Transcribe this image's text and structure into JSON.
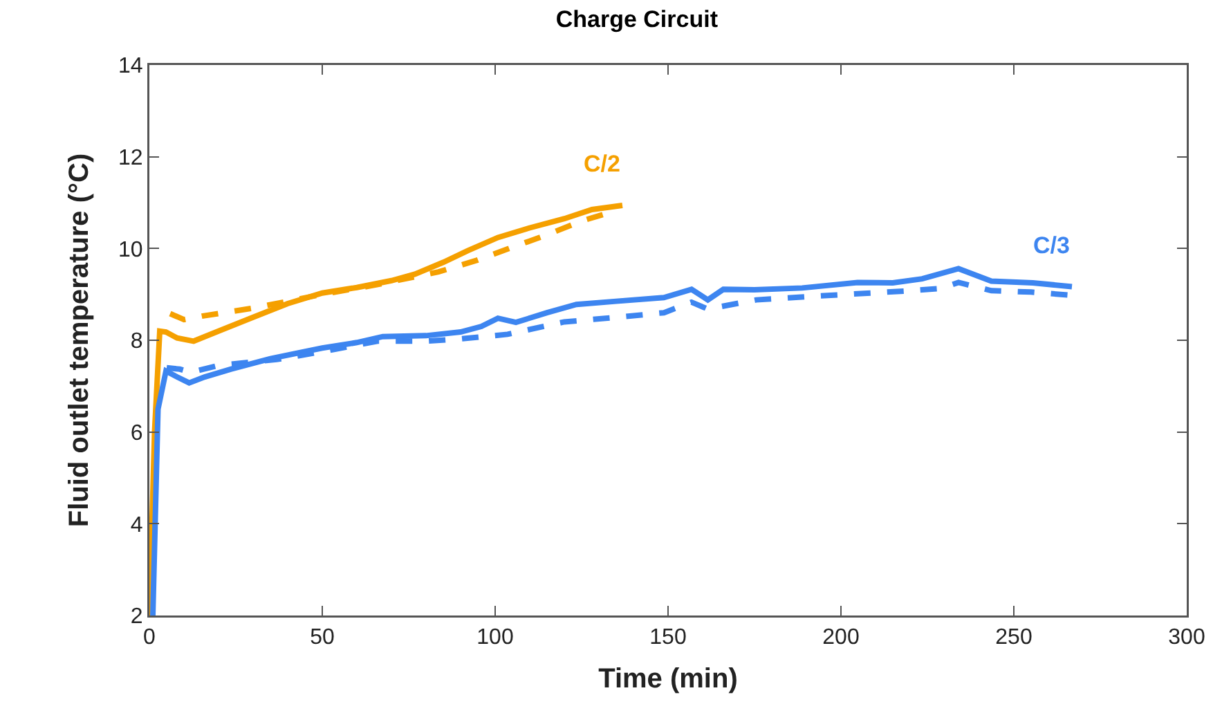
{
  "chart_data": {
    "type": "line",
    "title": "Charge Circuit",
    "xlabel": "Time (min)",
    "ylabel": "Fluid outlet temperature (°C)",
    "xlim": [
      0,
      300
    ],
    "xticks": [
      0,
      50,
      100,
      150,
      200,
      250,
      300
    ],
    "ylim": [
      2,
      14
    ],
    "yticks": [
      2,
      4,
      6,
      8,
      10,
      12,
      14
    ],
    "grid": false,
    "legend": false,
    "marker": "none",
    "series": [
      {
        "name": "C/2",
        "color": "#f5a000",
        "line_style": "solid",
        "x": [
          0,
          1.5,
          3,
          4.8,
          8,
          12.8,
          20,
          30,
          40,
          50,
          60,
          70,
          76.8,
          85,
          92,
          100.8,
          110,
          120,
          128,
          136.8
        ],
        "values": [
          2,
          6,
          8.2,
          8.18,
          8.05,
          7.98,
          8.2,
          8.5,
          8.8,
          9.03,
          9.15,
          9.3,
          9.44,
          9.7,
          9.95,
          10.24,
          10.45,
          10.65,
          10.85,
          10.94
        ]
      },
      {
        "color": "#f5a000",
        "line_style": "dashed",
        "x": [
          6,
          10,
          15.5,
          30,
          50,
          65,
          83.6,
          95,
          103.6,
          115,
          125,
          135.6
        ],
        "values": [
          8.58,
          8.45,
          8.53,
          8.7,
          9.0,
          9.2,
          9.49,
          9.75,
          9.99,
          10.3,
          10.6,
          10.84
        ]
      },
      {
        "name": "C/3",
        "color": "#3d85f0",
        "line_style": "solid",
        "x": [
          1,
          2.5,
          4.8,
          8,
          11.5,
          16,
          23.5,
          35,
          50,
          60,
          67.5,
          80,
          90,
          96,
          100.8,
          106,
          115,
          123.5,
          135,
          148.8,
          156.8,
          161.5,
          166,
          175,
          188.8,
          204.8,
          215,
          223.5,
          234,
          243.5,
          255.5,
          266.8
        ],
        "values": [
          2,
          6.5,
          7.33,
          7.2,
          7.07,
          7.2,
          7.37,
          7.6,
          7.83,
          7.95,
          8.08,
          8.1,
          8.18,
          8.3,
          8.48,
          8.39,
          8.6,
          8.78,
          8.85,
          8.93,
          9.11,
          8.88,
          9.11,
          9.1,
          9.14,
          9.26,
          9.25,
          9.34,
          9.56,
          9.29,
          9.25,
          9.17
        ]
      },
      {
        "color": "#3d85f0",
        "line_style": "dashed",
        "x": [
          5,
          8.8,
          12,
          20,
          36.8,
          50,
          66,
          80,
          90,
          103.6,
          120,
          135,
          148.8,
          156.8,
          161.5,
          175.5,
          190,
          208.8,
          220,
          228.8,
          234,
          243.5,
          255,
          266.8
        ],
        "values": [
          7.4,
          7.37,
          7.3,
          7.45,
          7.58,
          7.75,
          7.98,
          7.98,
          8.03,
          8.13,
          8.4,
          8.5,
          8.6,
          8.83,
          8.68,
          8.88,
          8.95,
          9.03,
          9.08,
          9.13,
          9.26,
          9.08,
          9.05,
          8.98
        ]
      }
    ]
  }
}
